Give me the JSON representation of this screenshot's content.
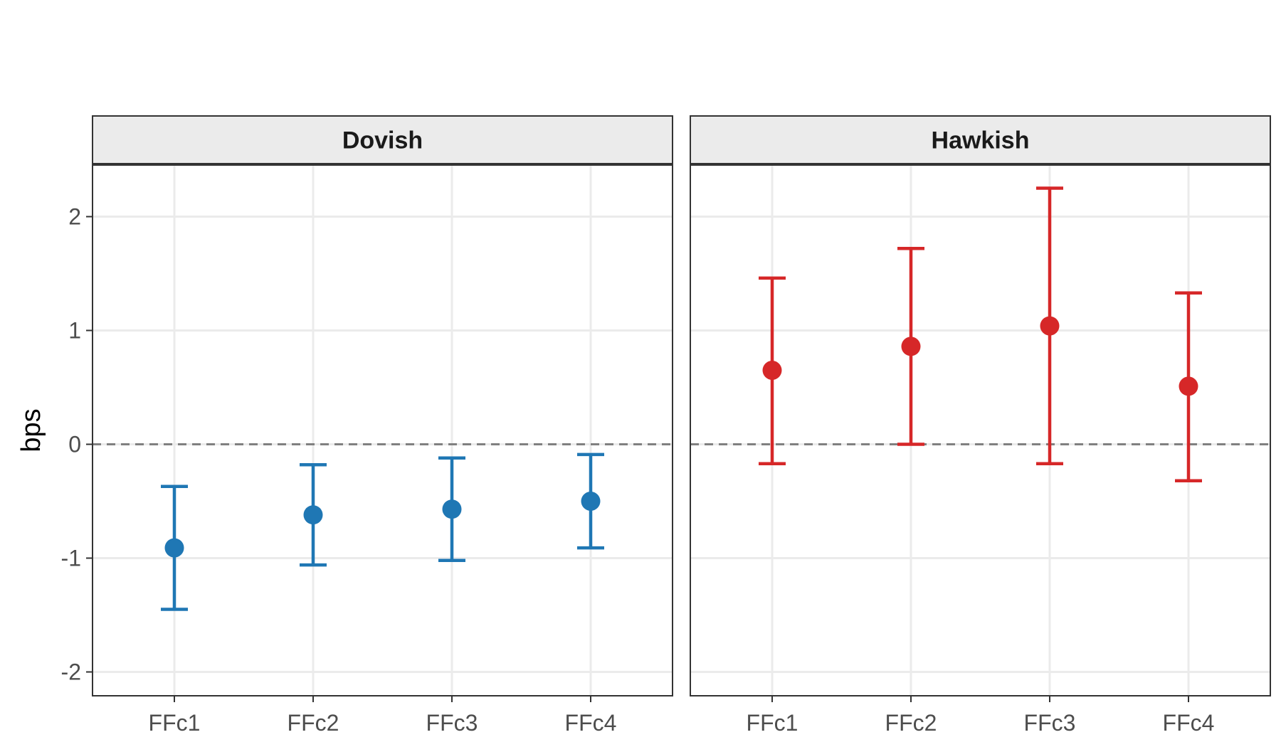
{
  "chart_data": {
    "type": "scatter",
    "subtype": "point-errorbar",
    "facet_by": "panel",
    "ylabel": "bps",
    "xlabel": "",
    "title": "",
    "ylim": [
      -2.2,
      2.45
    ],
    "yticks": [
      -2,
      -1,
      0,
      1,
      2
    ],
    "reference_line": {
      "y": 0,
      "style": "dashed",
      "color": "#808080"
    },
    "grid": true,
    "legend": "none",
    "categories": [
      "FFc1",
      "FFc2",
      "FFc3",
      "FFc4"
    ],
    "panels": [
      {
        "name": "Dovish",
        "color": "#1f77b4",
        "estimates": [
          -0.91,
          -0.62,
          -0.57,
          -0.5
        ],
        "lower": [
          -1.45,
          -1.06,
          -1.02,
          -0.91
        ],
        "upper": [
          -0.37,
          -0.18,
          -0.12,
          -0.09
        ]
      },
      {
        "name": "Hawkish",
        "color": "#d62728",
        "estimates": [
          0.65,
          0.86,
          1.04,
          0.51
        ],
        "lower": [
          -0.17,
          0.0,
          -0.17,
          -0.32
        ],
        "upper": [
          1.46,
          1.72,
          2.25,
          1.33
        ]
      }
    ]
  }
}
